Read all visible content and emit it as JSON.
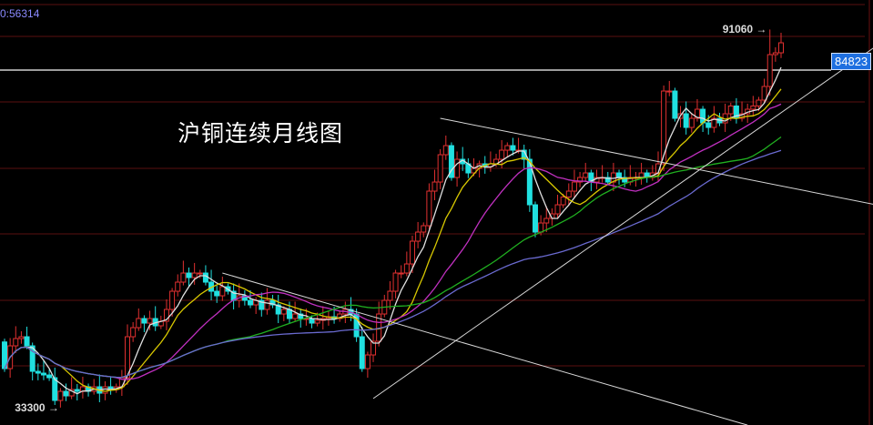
{
  "title": "沪铜连续月线图",
  "top_readout": "0:56314",
  "current_price_label": "84823",
  "colors": {
    "up": "#e03030",
    "down": "#20e0e0",
    "grid": "#5a0f0f",
    "ma": [
      "#e0e0e0",
      "#d8c800",
      "#c030c0",
      "#20b020",
      "#6a6ad0"
    ]
  },
  "chart_data": {
    "type": "candlestick",
    "period": "monthly",
    "first_open": 43000,
    "closes": [
      38900,
      42400,
      43520,
      43800,
      42400,
      38480,
      38200,
      37920,
      37500,
      34000,
      35400,
      34700,
      35680,
      35400,
      36100,
      35400,
      36100,
      35120,
      36100,
      35680,
      36100,
      37500,
      43800,
      45200,
      46600,
      45900,
      46600,
      45480,
      46180,
      48000,
      50800,
      52200,
      53600,
      52900,
      53600,
      53600,
      52200,
      50800,
      50100,
      51500,
      50800,
      49400,
      50100,
      49400,
      48700,
      49400,
      48000,
      49400,
      48700,
      47300,
      48000,
      46600,
      47300,
      46600,
      46600,
      45900,
      46320,
      46600,
      46880,
      46600,
      47300,
      48000,
      47300,
      43800,
      38900,
      41000,
      43100,
      47300,
      49400,
      50800,
      53600,
      53600,
      55000,
      58500,
      59900,
      60880,
      66200,
      67600,
      71800,
      73200,
      68300,
      71100,
      70400,
      69000,
      69700,
      70400,
      69980,
      70400,
      71100,
      72500,
      73200,
      72500,
      72500,
      71100,
      64100,
      59900,
      61300,
      62000,
      62700,
      64100,
      65300,
      66200,
      67600,
      68300,
      69000,
      67600,
      68300,
      68300,
      67600,
      69000,
      68300,
      67600,
      68300,
      68300,
      69000,
      68300,
      69000,
      70400,
      81600,
      81600,
      77400,
      78100,
      76000,
      77400,
      78800,
      76700,
      76000,
      77400,
      76700,
      78100,
      79300,
      77400,
      78100,
      78800,
      79300,
      80200,
      82300,
      87200,
      87480,
      89020
    ],
    "moving_average_periods": [
      5,
      10,
      20,
      40,
      60
    ],
    "extremes": {
      "high": {
        "label": "91060",
        "value": 91060,
        "index": 137
      },
      "low": {
        "label": "33300",
        "value": 33300,
        "index": 9
      }
    },
    "current_price": 84823,
    "trendlines": [
      {
        "from": {
          "index": 39,
          "price": 53600
        },
        "to": {
          "index": 133,
          "price": 30200
        }
      },
      {
        "from": {
          "index": 78,
          "price": 77400
        },
        "to": {
          "index": 156,
          "price": 64100
        }
      },
      {
        "from": {
          "index": 66,
          "price": 34300
        },
        "to": {
          "index": 156,
          "price": 88500
        }
      }
    ]
  }
}
